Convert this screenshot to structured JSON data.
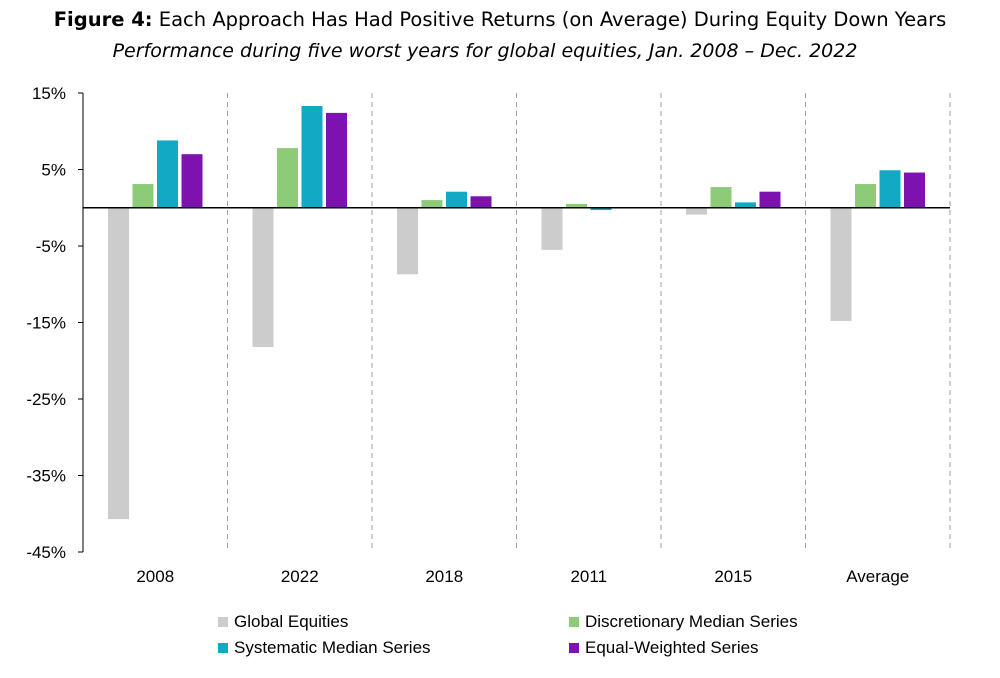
{
  "header": {
    "figure_label": "Figure 4:",
    "title": " Each Approach Has Had Positive Returns (on Average) During Equity Down Years",
    "subtitle": "Performance during five worst years for global equities, Jan. 2008 – Dec. 2022"
  },
  "chart_data": {
    "type": "bar",
    "categories": [
      "2008",
      "2022",
      "2018",
      "2011",
      "2015",
      "Average"
    ],
    "series": [
      {
        "name": "Global Equities",
        "color": "#cccccc",
        "values": [
          -40.7,
          -18.2,
          -8.7,
          -5.5,
          -0.9,
          -14.8
        ]
      },
      {
        "name": "Discretionary Median Series",
        "color": "#8ccc78",
        "values": [
          3.1,
          7.8,
          1.0,
          0.5,
          2.7,
          3.1
        ]
      },
      {
        "name": "Systematic Median Series",
        "color": "#12a9c4",
        "values": [
          8.8,
          13.3,
          2.1,
          -0.3,
          0.7,
          4.9
        ]
      },
      {
        "name": "Equal-Weighted Series",
        "color": "#7d12b0",
        "values": [
          7.0,
          12.4,
          1.5,
          0.0,
          2.1,
          4.6
        ]
      }
    ],
    "yticks": [
      "15%",
      "5%",
      "-5%",
      "-15%",
      "-25%",
      "-35%",
      "-45%"
    ],
    "ylim": [
      -45,
      15
    ],
    "ylabel": "",
    "xlabel": "",
    "grid": false,
    "legend_position": "bottom"
  }
}
